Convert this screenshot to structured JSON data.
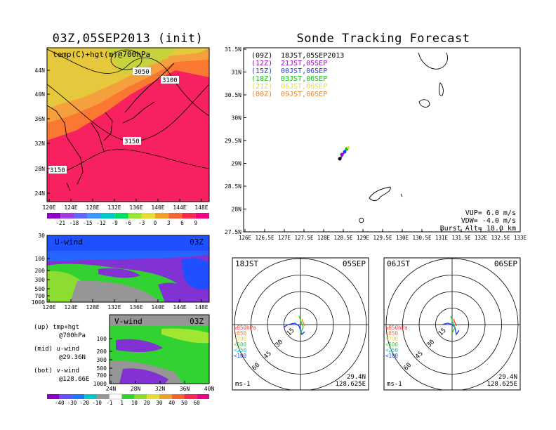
{
  "left_title": "03Z,05SEP2013 (init)",
  "right_title": "Sonde Tracking Forecast",
  "colors": {
    "purple": "#a000c8",
    "blue": "#1e3cff",
    "cyan": "#00c8c8",
    "green": "#00dc00",
    "lgreen": "#a0e632",
    "yellow": "#e6dc32",
    "orange": "#f08228",
    "red": "#fa3c3c",
    "pink": "#f00082",
    "hot": "#ff0000",
    "gray": "#969696"
  },
  "temp_map": {
    "label": "temp(C)+hgt(m)@700hPa",
    "xticks": [
      "120E",
      "124E",
      "128E",
      "132E",
      "136E",
      "140E",
      "144E",
      "148E"
    ],
    "yticks": [
      "44N",
      "40N",
      "36N",
      "32N",
      "28N",
      "24N"
    ],
    "contour_labels": [
      "3050",
      "3100",
      "3150",
      "3150"
    ],
    "colorbar": [
      "-21",
      "-18",
      "-15",
      "-12",
      "-9",
      "-6",
      "-3",
      "0",
      "3",
      "6",
      "9"
    ]
  },
  "u_wind": {
    "label": "U-wind",
    "time": "03Z",
    "yticks": [
      "30",
      "100",
      "200",
      "300",
      "500",
      "700",
      "1000"
    ],
    "xticks": [
      "120E",
      "124E",
      "128E",
      "132E",
      "136E",
      "140E",
      "144E",
      "148E"
    ]
  },
  "v_wind": {
    "label": "V-wind",
    "time": "03Z",
    "yticks": [
      "100",
      "200",
      "300",
      "500",
      "700",
      "1000"
    ],
    "xticks": [
      "24N",
      "28N",
      "32N",
      "36N",
      "40N"
    ]
  },
  "side_notes": [
    {
      "a": "(up) tmp+hgt",
      "b": "@700hPa"
    },
    {
      "a": "(mid) u-wind",
      "b": "@29.36N"
    },
    {
      "a": "(bot) v-wind",
      "b": "@128.66E"
    }
  ],
  "wind_colorbar": [
    "-40",
    "-30",
    "-20",
    "-10",
    "-1",
    "1",
    "10",
    "20",
    "30",
    "40",
    "50",
    "60"
  ],
  "tracking": {
    "legend": [
      {
        "code": "(09Z)",
        "time": "18JST,05SEP2013",
        "color": "#000000"
      },
      {
        "code": "(12Z)",
        "time": "21JST,05SEP",
        "color": "#a000c8"
      },
      {
        "code": "(15Z)",
        "time": "00JST,06SEP",
        "color": "#1e3cff"
      },
      {
        "code": "(18Z)",
        "time": "03JST,06SEP",
        "color": "#00c800"
      },
      {
        "code": "(21Z)",
        "time": "06JST,06SEP",
        "color": "#e6dc32"
      },
      {
        "code": "(00Z)",
        "time": "09JST,06SEP",
        "color": "#f08228"
      }
    ],
    "yticks": [
      "31.5N",
      "31N",
      "30.5N",
      "30N",
      "29.5N",
      "29N",
      "28.5N",
      "28N",
      "27.5N"
    ],
    "xticks": [
      "126E",
      "126.5E",
      "127E",
      "127.5E",
      "128E",
      "128.5E",
      "129E",
      "129.5E",
      "130E",
      "130.5E",
      "131E",
      "131.5E",
      "132E",
      "132.5E",
      "133E"
    ],
    "params": [
      "VUP= 6.0 m/s",
      "VDW= -4.0 m/s",
      "Burst Alt= 18.0 km"
    ]
  },
  "polar_left": {
    "time": "18JST",
    "date": "05SEP",
    "lat": "29.4N",
    "lon": "128.625E",
    "unit": "ms-1",
    "rings": [
      "15",
      "30",
      "45",
      "60"
    ],
    "levels": [
      "≥850hPa",
      "<850",
      "<700",
      "<500",
      "<250",
      "<100"
    ]
  },
  "polar_right": {
    "time": "06JST",
    "date": "06SEP",
    "lat": "29.4N",
    "lon": "128.625E",
    "unit": "ms-1",
    "rings": [
      "15",
      "30",
      "45",
      "60"
    ],
    "levels": [
      "≥850hPa",
      "<850",
      "<700",
      "<500",
      "<250",
      "<100"
    ]
  }
}
